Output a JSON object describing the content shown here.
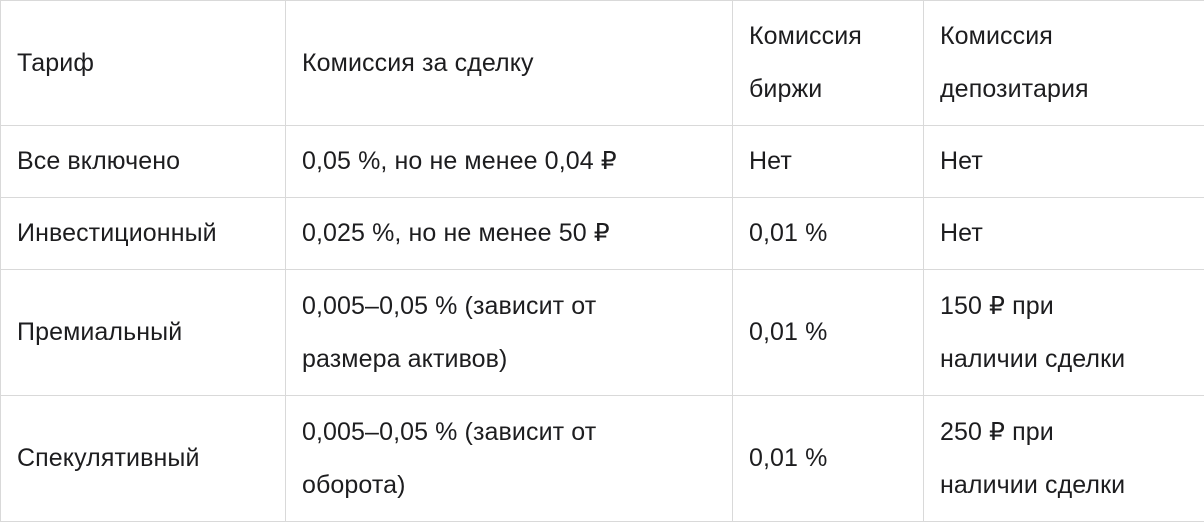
{
  "styles": {
    "border_color": "#d9d9d9",
    "text_color": "#1d1d1f",
    "background_color": "#ffffff"
  },
  "chart_data": {
    "type": "table",
    "title": "",
    "columns": [
      "Тариф",
      "Комиссия за сделку",
      "Комиссия\nбиржи",
      "Комиссия\nдепозитария"
    ],
    "rows": [
      [
        "Все включено",
        "0,05 %, но не менее 0,04 ₽",
        "Нет",
        "Нет"
      ],
      [
        "Инвестиционный",
        "0,025 %, но не менее 50 ₽",
        "0,01 %",
        "Нет"
      ],
      [
        "Премиальный",
        "0,005–0,05 % (зависит от\nразмера активов)",
        "0,01 %",
        "150 ₽ при\nналичии сделки"
      ],
      [
        "Спекулятивный",
        "0,005–0,05 % (зависит от\nоборота)",
        "0,01 %",
        "250 ₽ при\nналичии сделки"
      ]
    ]
  }
}
